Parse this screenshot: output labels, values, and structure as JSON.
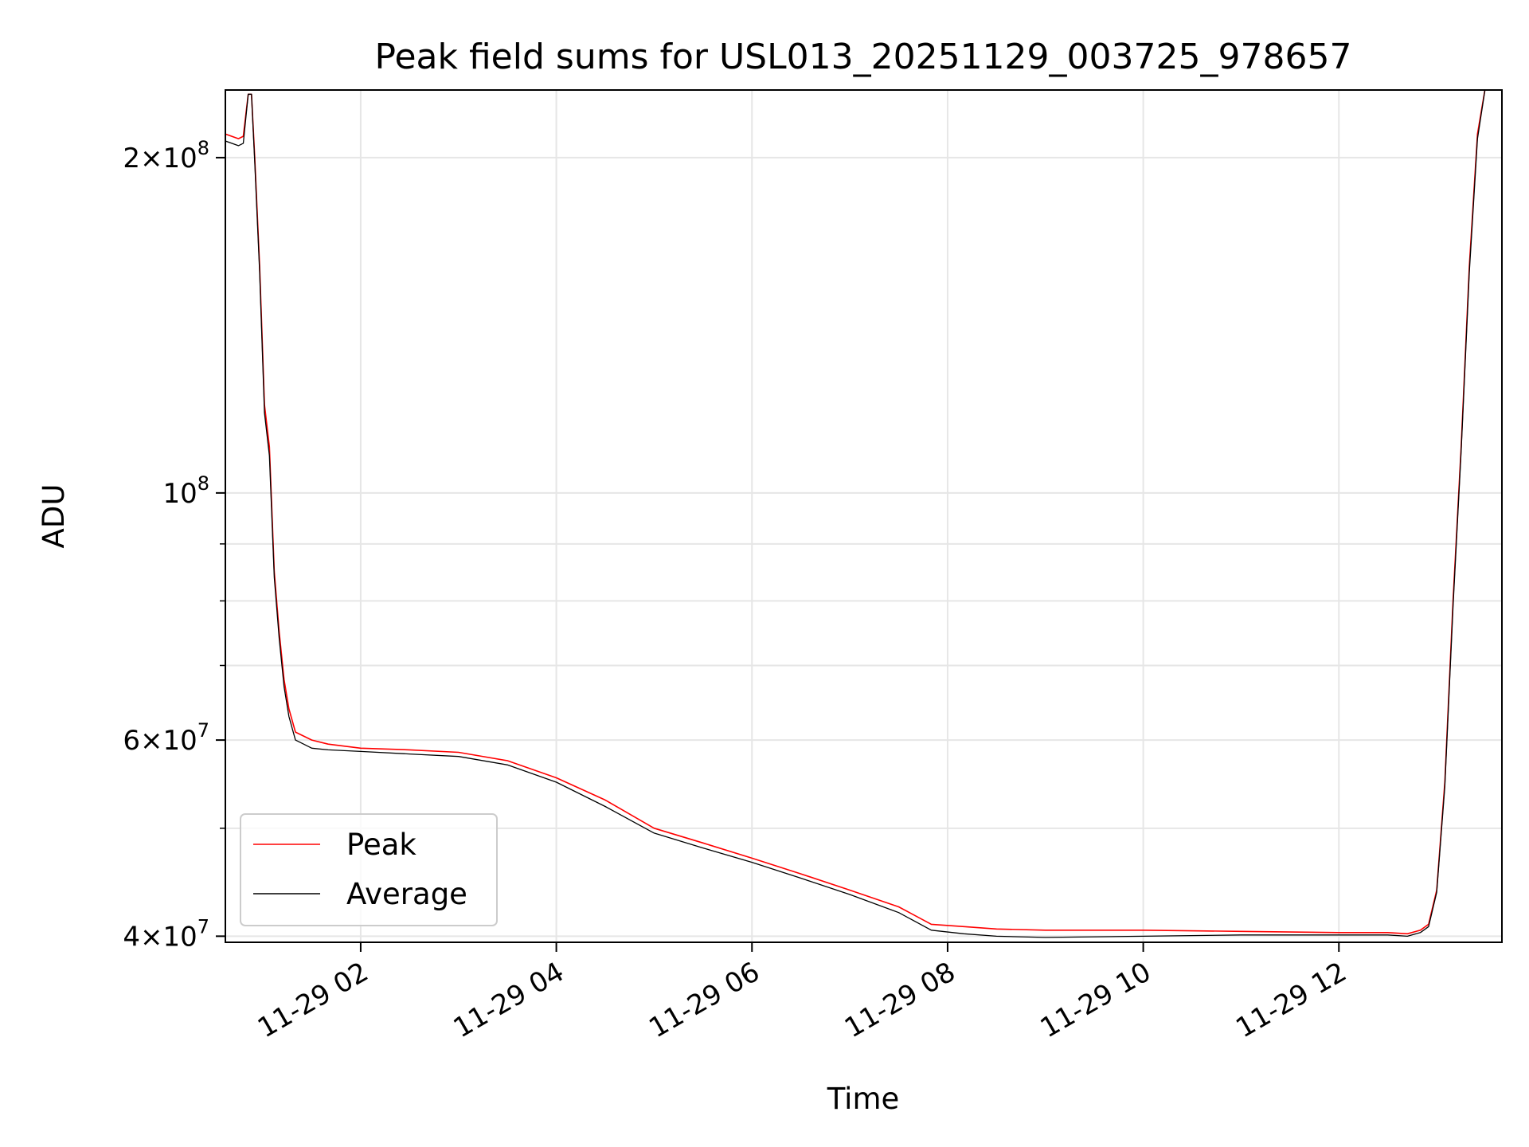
{
  "chart_data": {
    "type": "line",
    "title": "Peak field sums for USL013_20251129_003725_978657",
    "xlabel": "Time",
    "ylabel": "ADU",
    "yscale": "log",
    "xlim": [
      "11-29 00:37",
      "11-29 13:40"
    ],
    "ylim": [
      39500000,
      230000000
    ],
    "grid": true,
    "legend_position": "lower-left",
    "x_ticks": [
      {
        "value": "11-29 02:00",
        "label": "11-29 02"
      },
      {
        "value": "11-29 04:00",
        "label": "11-29 04"
      },
      {
        "value": "11-29 06:00",
        "label": "11-29 06"
      },
      {
        "value": "11-29 08:00",
        "label": "11-29 08"
      },
      {
        "value": "11-29 10:00",
        "label": "11-29 10"
      },
      {
        "value": "11-29 12:00",
        "label": "11-29 12"
      }
    ],
    "y_ticks": [
      {
        "value": 40000000,
        "mant": "4",
        "exp": "7"
      },
      {
        "value": 60000000,
        "mant": "6",
        "exp": "7"
      },
      {
        "value": 100000000,
        "mant": "",
        "exp": "8"
      },
      {
        "value": 200000000,
        "mant": "2",
        "exp": "8"
      }
    ],
    "y_minor_ticks": [
      50000000,
      70000000,
      80000000,
      90000000
    ],
    "series": [
      {
        "name": "Peak",
        "color": "#ff0000",
        "x": [
          "11-29 00:37",
          "11-29 00:45",
          "11-29 00:48",
          "11-29 00:51",
          "11-29 00:53",
          "11-29 00:55",
          "11-29 00:58",
          "11-29 01:01",
          "11-29 01:04",
          "11-29 01:07",
          "11-29 01:10",
          "11-29 01:13",
          "11-29 01:16",
          "11-29 01:20",
          "11-29 01:25",
          "11-29 01:30",
          "11-29 01:40",
          "11-29 02:00",
          "11-29 02:30",
          "11-29 03:00",
          "11-29 03:30",
          "11-29 04:00",
          "11-29 04:30",
          "11-29 05:00",
          "11-29 05:30",
          "11-29 06:00",
          "11-29 06:30",
          "11-29 07:00",
          "11-29 07:30",
          "11-29 07:50",
          "11-29 08:10",
          "11-29 08:30",
          "11-29 09:00",
          "11-29 10:00",
          "11-29 11:00",
          "11-29 12:00",
          "11-29 12:30",
          "11-29 12:42",
          "11-29 12:50",
          "11-29 12:55",
          "11-29 13:00",
          "11-29 13:05",
          "11-29 13:10",
          "11-29 13:15",
          "11-29 13:20",
          "11-29 13:25",
          "11-29 13:30"
        ],
        "y": [
          210000000,
          208000000,
          209000000,
          228000000,
          228000000,
          200000000,
          160000000,
          120000000,
          110000000,
          85000000,
          75000000,
          68000000,
          64000000,
          61000000,
          60500000,
          60000000,
          59500000,
          59000000,
          58800000,
          58500000,
          57500000,
          55500000,
          53000000,
          50000000,
          48500000,
          47000000,
          45500000,
          44000000,
          42500000,
          41000000,
          40800000,
          40600000,
          40500000,
          40500000,
          40400000,
          40300000,
          40300000,
          40200000,
          40500000,
          41000000,
          44000000,
          55000000,
          80000000,
          110000000,
          160000000,
          210000000,
          232000000
        ]
      },
      {
        "name": "Average",
        "color": "#000000",
        "x": [
          "11-29 00:37",
          "11-29 00:45",
          "11-29 00:48",
          "11-29 00:51",
          "11-29 00:53",
          "11-29 00:55",
          "11-29 00:58",
          "11-29 01:01",
          "11-29 01:04",
          "11-29 01:07",
          "11-29 01:10",
          "11-29 01:13",
          "11-29 01:16",
          "11-29 01:20",
          "11-29 01:25",
          "11-29 01:30",
          "11-29 01:40",
          "11-29 02:00",
          "11-29 02:30",
          "11-29 03:00",
          "11-29 03:30",
          "11-29 04:00",
          "11-29 04:30",
          "11-29 05:00",
          "11-29 05:30",
          "11-29 06:00",
          "11-29 06:30",
          "11-29 07:00",
          "11-29 07:30",
          "11-29 07:50",
          "11-29 08:10",
          "11-29 08:30",
          "11-29 09:00",
          "11-29 10:00",
          "11-29 11:00",
          "11-29 12:00",
          "11-29 12:30",
          "11-29 12:42",
          "11-29 12:50",
          "11-29 12:55",
          "11-29 13:00",
          "11-29 13:05",
          "11-29 13:10",
          "11-29 13:15",
          "11-29 13:20",
          "11-29 13:25",
          "11-29 13:30"
        ],
        "y": [
          207000000,
          205000000,
          206000000,
          228000000,
          228000000,
          198000000,
          158000000,
          118000000,
          108000000,
          84000000,
          74000000,
          67000000,
          63000000,
          60000000,
          59500000,
          59000000,
          58800000,
          58600000,
          58300000,
          58000000,
          57000000,
          55000000,
          52300000,
          49500000,
          48000000,
          46600000,
          45100000,
          43600000,
          42000000,
          40500000,
          40200000,
          40000000,
          39900000,
          40000000,
          40100000,
          40100000,
          40100000,
          40000000,
          40300000,
          40800000,
          43800000,
          54500000,
          79000000,
          109000000,
          158000000,
          208000000,
          232000000
        ]
      }
    ]
  }
}
